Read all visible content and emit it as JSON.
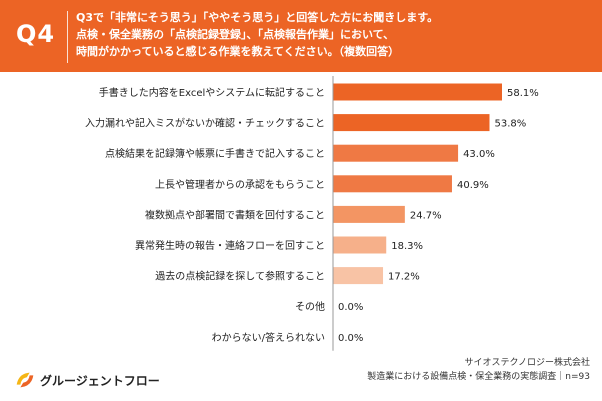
{
  "header": {
    "question_number": "Q4",
    "question_lines": [
      "Q3で「非常にそう思う」「ややそう思う」と回答した方にお聞きします。",
      "点検・保全業務の「点検記録登録」、「点検報告作業」において、",
      "時間がかかっていると感じる作業を教えてください。（複数回答）"
    ]
  },
  "chart_data": {
    "type": "bar",
    "orientation": "horizontal",
    "categories": [
      "手書きした内容をExcelやシステムに転記すること",
      "入力漏れや記入ミスがないか確認・チェックすること",
      "点検結果を記録簿や帳票に手書きで記入すること",
      "上長や管理者からの承認をもらうこと",
      "複数拠点や部署間で書類を回付すること",
      "異常発生時の報告・連絡フローを回すこと",
      "過去の点検記録を探して参照すること",
      "その他",
      "わからない/答えられない"
    ],
    "values": [
      58.1,
      53.8,
      43.0,
      40.9,
      24.7,
      18.3,
      17.2,
      0.0,
      0.0
    ],
    "value_labels": [
      "58.1%",
      "53.8%",
      "43.0%",
      "40.9%",
      "24.7%",
      "18.3%",
      "17.2%",
      "0.0%",
      "0.0%"
    ],
    "unit": "%",
    "xlim": [
      0,
      60
    ],
    "bar_colors": [
      "#ec6425",
      "#ec6425",
      "#ef7944",
      "#ef7944",
      "#f39563",
      "#f6b08a",
      "#f8c3a5",
      "#f8c3a5",
      "#f8c3a5"
    ],
    "title": "",
    "xlabel": "",
    "ylabel": ""
  },
  "footer": {
    "logo_text": "グルージェントフロー",
    "company": "サイオステクノロジー株式会社",
    "survey": "製造業における設備点検・保全業務の実態調査｜n=93"
  },
  "colors": {
    "accent": "#ec6425",
    "logo_yellow": "#f5b616"
  }
}
